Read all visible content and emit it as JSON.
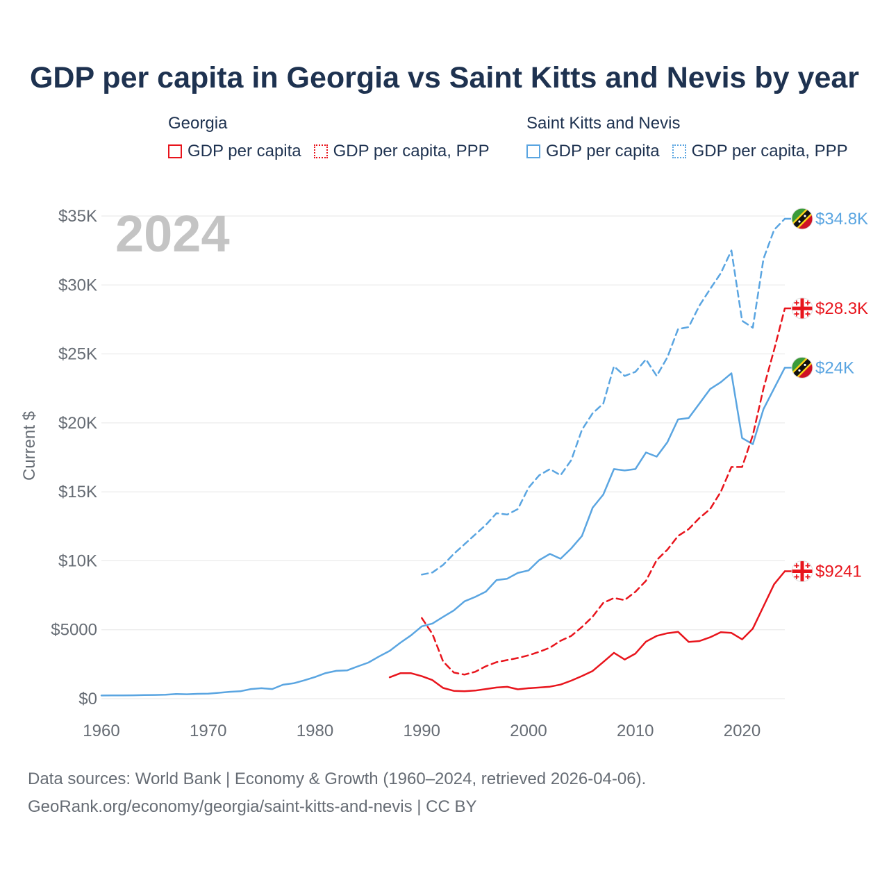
{
  "title": "GDP per capita in Georgia vs Saint Kitts and Nevis by year",
  "legend": {
    "groups": [
      {
        "country": "Georgia",
        "items": [
          {
            "label": "GDP per capita",
            "style": "solid",
            "color": "#e8141c"
          },
          {
            "label": "GDP per capita, PPP",
            "style": "dotted",
            "color": "#e8141c"
          }
        ]
      },
      {
        "country": "Saint Kitts and Nevis",
        "items": [
          {
            "label": "GDP per capita",
            "style": "solid",
            "color": "#5aa5e1"
          },
          {
            "label": "GDP per capita, PPP",
            "style": "dotted",
            "color": "#5aa5e1"
          }
        ]
      }
    ]
  },
  "year_watermark": "2024",
  "footer": {
    "line1": "Data sources: World Bank | Economy & Growth (1960–2024, retrieved 2026-04-06).",
    "line2": "GeoRank.org/economy/georgia/saint-kitts-and-nevis | CC BY"
  },
  "colors": {
    "georgia": "#e8141c",
    "skn": "#5aa5e1",
    "grid": "#e6e6e6",
    "axis_text": "#666c74",
    "title": "#1e3250",
    "watermark": "#c4c4c4"
  },
  "chart_data": {
    "type": "line",
    "title": "GDP per capita in Georgia vs Saint Kitts and Nevis by year",
    "xlabel": "",
    "ylabel": "Current $",
    "xlim": [
      1960,
      2024
    ],
    "ylim": [
      0,
      35000
    ],
    "xticks": [
      1960,
      1970,
      1980,
      1990,
      2000,
      2010,
      2020
    ],
    "xtick_labels": [
      "1960",
      "1970",
      "1980",
      "1990",
      "2000",
      "2010",
      "2020"
    ],
    "yticks": [
      0,
      5000,
      10000,
      15000,
      20000,
      25000,
      30000,
      35000
    ],
    "ytick_labels": [
      "$0",
      "$5000",
      "$10K",
      "$15K",
      "$20K",
      "$25K",
      "$30K",
      "$35K"
    ],
    "series": [
      {
        "name": "Saint Kitts and Nevis GDP per capita, PPP",
        "country": "Saint Kitts and Nevis",
        "color": "#5aa5e1",
        "dash": "dashed",
        "end_label": "$34.8K",
        "flag": "skn",
        "x": [
          1990,
          1991,
          1992,
          1993,
          1994,
          1995,
          1996,
          1997,
          1998,
          1999,
          2000,
          2001,
          2002,
          2003,
          2004,
          2005,
          2006,
          2007,
          2008,
          2009,
          2010,
          2011,
          2012,
          2013,
          2014,
          2015,
          2016,
          2017,
          2018,
          2019,
          2020,
          2021,
          2022,
          2023,
          2024
        ],
        "values": [
          9000,
          9150,
          9700,
          10500,
          11200,
          11900,
          12600,
          13450,
          13350,
          13750,
          15300,
          16200,
          16650,
          16200,
          17300,
          19500,
          20700,
          21400,
          24100,
          23400,
          23700,
          24600,
          23400,
          24750,
          26800,
          26950,
          28500,
          29700,
          30850,
          32500,
          27400,
          26900,
          31900,
          34000,
          34800
        ]
      },
      {
        "name": "Saint Kitts and Nevis GDP per capita",
        "country": "Saint Kitts and Nevis",
        "color": "#5aa5e1",
        "dash": "solid",
        "end_label": "$24K",
        "flag": "skn",
        "x": [
          1960,
          1961,
          1962,
          1963,
          1964,
          1965,
          1966,
          1967,
          1968,
          1969,
          1970,
          1971,
          1972,
          1973,
          1974,
          1975,
          1976,
          1977,
          1978,
          1979,
          1980,
          1981,
          1982,
          1983,
          1984,
          1985,
          1986,
          1987,
          1988,
          1989,
          1990,
          1991,
          1992,
          1993,
          1994,
          1995,
          1996,
          1997,
          1998,
          1999,
          2000,
          2001,
          2002,
          2003,
          2004,
          2005,
          2006,
          2007,
          2008,
          2009,
          2010,
          2011,
          2012,
          2013,
          2014,
          2015,
          2016,
          2017,
          2018,
          2019,
          2020,
          2021,
          2022,
          2023,
          2024
        ],
        "values": [
          230,
          235,
          240,
          248,
          262,
          272,
          290,
          335,
          320,
          355,
          370,
          430,
          500,
          540,
          700,
          760,
          700,
          1010,
          1120,
          1330,
          1570,
          1860,
          2020,
          2050,
          2340,
          2620,
          3060,
          3470,
          4060,
          4600,
          5250,
          5450,
          5930,
          6400,
          7060,
          7380,
          7760,
          8600,
          8700,
          9120,
          9300,
          10050,
          10500,
          10150,
          10900,
          11800,
          13850,
          14800,
          16650,
          16550,
          16650,
          17850,
          17550,
          18600,
          20250,
          20350,
          21400,
          22450,
          22950,
          23600,
          18900,
          18450,
          21000,
          22500,
          24000
        ]
      },
      {
        "name": "Georgia GDP per capita, PPP",
        "country": "Georgia",
        "color": "#e8141c",
        "dash": "dashed",
        "end_label": "$28.3K",
        "flag": "georgia",
        "x": [
          1990,
          1991,
          1992,
          1993,
          1994,
          1995,
          1996,
          1997,
          1998,
          1999,
          2000,
          2001,
          2002,
          2003,
          2004,
          2005,
          2006,
          2007,
          2008,
          2009,
          2010,
          2011,
          2012,
          2013,
          2014,
          2015,
          2016,
          2017,
          2018,
          2019,
          2020,
          2021,
          2022,
          2023,
          2024
        ],
        "values": [
          5850,
          4700,
          2700,
          1900,
          1750,
          1950,
          2350,
          2650,
          2800,
          2950,
          3150,
          3400,
          3700,
          4200,
          4550,
          5200,
          5950,
          6950,
          7300,
          7150,
          7750,
          8550,
          10050,
          10800,
          11800,
          12300,
          13100,
          13750,
          15000,
          16800,
          16800,
          19100,
          22500,
          25300,
          28300
        ]
      },
      {
        "name": "Georgia GDP per capita",
        "country": "Georgia",
        "color": "#e8141c",
        "dash": "solid",
        "end_label": "$9241",
        "flag": "georgia",
        "x": [
          1987,
          1988,
          1989,
          1990,
          1991,
          1992,
          1993,
          1994,
          1995,
          1996,
          1997,
          1998,
          1999,
          2000,
          2001,
          2002,
          2003,
          2004,
          2005,
          2006,
          2007,
          2008,
          2009,
          2010,
          2011,
          2012,
          2013,
          2014,
          2015,
          2016,
          2017,
          2018,
          2019,
          2020,
          2021,
          2022,
          2023,
          2024
        ],
        "values": [
          1550,
          1850,
          1850,
          1630,
          1350,
          780,
          570,
          540,
          590,
          700,
          810,
          860,
          680,
          760,
          810,
          870,
          1020,
          1310,
          1640,
          2010,
          2660,
          3330,
          2840,
          3270,
          4140,
          4550,
          4750,
          4850,
          4120,
          4180,
          4450,
          4820,
          4770,
          4300,
          5080,
          6700,
          8300,
          9241
        ]
      }
    ]
  }
}
